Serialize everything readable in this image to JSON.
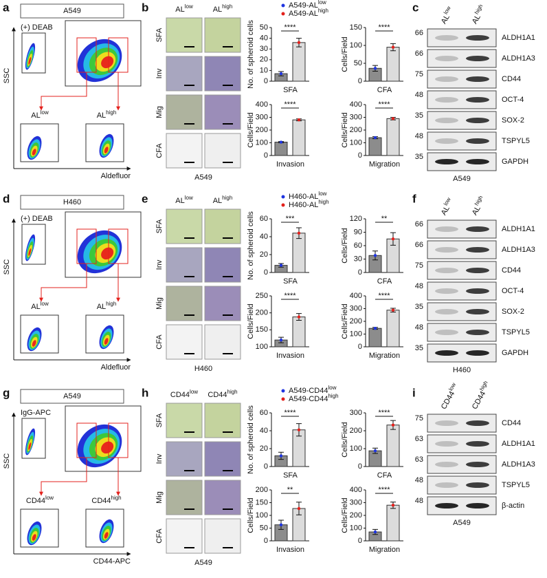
{
  "rows": [
    {
      "flow": {
        "letter": "a",
        "title": "A549",
        "control": "(+) DEAB",
        "low": {
          "base": "AL",
          "sup": "low"
        },
        "high": {
          "base": "AL",
          "sup": "high"
        },
        "y_label": "SSC",
        "x_label": "Aldefluor"
      },
      "images": {
        "letter": "b",
        "cols": [
          {
            "base": "AL",
            "sup": "low"
          },
          {
            "base": "AL",
            "sup": "high"
          }
        ],
        "rows": [
          "SFA",
          "Inv",
          "Mig",
          "CFA"
        ],
        "caption": "A549"
      },
      "legend": [
        {
          "base": "A549-AL",
          "sup": "low",
          "color": "#1f35e0"
        },
        {
          "base": "A549-AL",
          "sup": "high",
          "color": "#e3211c"
        }
      ],
      "blot": {
        "letter": "c",
        "lanes": [
          {
            "base": "AL",
            "sup": "low"
          },
          {
            "base": "AL",
            "sup": "high"
          }
        ],
        "rows": [
          {
            "mw": "66",
            "label": "ALDH1A1"
          },
          {
            "mw": "66",
            "label": "ALDH1A3"
          },
          {
            "mw": "75",
            "label": "CD44"
          },
          {
            "mw": "48",
            "label": "OCT-4"
          },
          {
            "mw": "35",
            "label": "SOX-2"
          },
          {
            "mw": "48",
            "label": "TSPYL5"
          },
          {
            "mw": "35",
            "label": "GAPDH"
          }
        ],
        "caption": "A549"
      }
    },
    {
      "flow": {
        "letter": "d",
        "title": "H460",
        "control": "(+) DEAB",
        "low": {
          "base": "AL",
          "sup": "low"
        },
        "high": {
          "base": "AL",
          "sup": "high"
        },
        "y_label": "SSC",
        "x_label": "Aldefluor"
      },
      "images": {
        "letter": "e",
        "cols": [
          {
            "base": "AL",
            "sup": "low"
          },
          {
            "base": "AL",
            "sup": "high"
          }
        ],
        "rows": [
          "SFA",
          "Inv",
          "Mig",
          "CFA"
        ],
        "caption": "H460"
      },
      "legend": [
        {
          "base": "H460-AL",
          "sup": "low",
          "color": "#1f35e0"
        },
        {
          "base": "H460-AL",
          "sup": "high",
          "color": "#e3211c"
        }
      ],
      "blot": {
        "letter": "f",
        "lanes": [
          {
            "base": "AL",
            "sup": "low"
          },
          {
            "base": "AL",
            "sup": "high"
          }
        ],
        "rows": [
          {
            "mw": "66",
            "label": "ALDH1A1"
          },
          {
            "mw": "66",
            "label": "ALDH1A3"
          },
          {
            "mw": "75",
            "label": "CD44"
          },
          {
            "mw": "48",
            "label": "OCT-4"
          },
          {
            "mw": "35",
            "label": "SOX-2"
          },
          {
            "mw": "48",
            "label": "TSPYL5"
          },
          {
            "mw": "35",
            "label": "GAPDH"
          }
        ],
        "caption": "H460"
      }
    },
    {
      "flow": {
        "letter": "g",
        "title": "A549",
        "control": "IgG-APC",
        "low": {
          "base": "CD44",
          "sup": "low"
        },
        "high": {
          "base": "CD44",
          "sup": "high"
        },
        "y_label": "SSC",
        "x_label": "CD44-APC"
      },
      "images": {
        "letter": "h",
        "cols": [
          {
            "base": "CD44",
            "sup": "low"
          },
          {
            "base": "CD44",
            "sup": "high"
          }
        ],
        "rows": [
          "SFA",
          "Inv",
          "Mig",
          "CFA"
        ],
        "caption": "A549"
      },
      "legend": [
        {
          "base": "A549-CD44",
          "sup": "low",
          "color": "#1f35e0"
        },
        {
          "base": "A549-CD44",
          "sup": "high",
          "color": "#e3211c"
        }
      ],
      "blot": {
        "letter": "i",
        "lanes": [
          {
            "base": "CD44",
            "sup": "low"
          },
          {
            "base": "CD44",
            "sup": "high"
          }
        ],
        "rows": [
          {
            "mw": "75",
            "label": "CD44"
          },
          {
            "mw": "63",
            "label": "ALDH1A1"
          },
          {
            "mw": "63",
            "label": "ALDH1A3"
          },
          {
            "mw": "48",
            "label": "TSPYL5"
          },
          {
            "mw": "48",
            "label": "β-actin"
          }
        ],
        "caption": "A549"
      }
    }
  ],
  "chart_data": [
    {
      "type": "bar",
      "x_label": "SFA",
      "y_label": "No. of spheroid cells",
      "values": [
        7,
        36
      ],
      "errors": [
        2,
        4
      ],
      "colors": [
        "#8c8c8c",
        "#dcdcdc"
      ],
      "ylim": [
        0,
        50
      ],
      "yticks": [
        0,
        10,
        20,
        30,
        40,
        50
      ],
      "significance": "****"
    },
    {
      "type": "bar",
      "x_label": "CFA",
      "y_label": "Cells/Field",
      "values": [
        36,
        95
      ],
      "errors": [
        8,
        10
      ],
      "colors": [
        "#8c8c8c",
        "#dcdcdc"
      ],
      "ylim": [
        0,
        150
      ],
      "yticks": [
        0,
        50,
        100,
        150
      ],
      "significance": "****"
    },
    {
      "type": "bar",
      "x_label": "Invasion",
      "y_label": "Cells/Field",
      "values": [
        105,
        280
      ],
      "errors": [
        5,
        8
      ],
      "colors": [
        "#8c8c8c",
        "#dcdcdc"
      ],
      "ylim": [
        0,
        400
      ],
      "yticks": [
        0,
        100,
        200,
        300,
        400
      ],
      "significance": "****"
    },
    {
      "type": "bar",
      "x_label": "Migration",
      "y_label": "Cells/Field",
      "values": [
        140,
        290
      ],
      "errors": [
        8,
        10
      ],
      "colors": [
        "#8c8c8c",
        "#dcdcdc"
      ],
      "ylim": [
        0,
        400
      ],
      "yticks": [
        0,
        100,
        200,
        300,
        400
      ],
      "significance": "****"
    },
    {
      "type": "bar",
      "x_label": "SFA",
      "y_label": "No. of spheroid cells",
      "values": [
        8,
        44
      ],
      "errors": [
        2,
        6
      ],
      "colors": [
        "#8c8c8c",
        "#dcdcdc"
      ],
      "ylim": [
        0,
        60
      ],
      "yticks": [
        0,
        20,
        40,
        60
      ],
      "significance": "***"
    },
    {
      "type": "bar",
      "x_label": "CFA",
      "y_label": "Cells/Field",
      "values": [
        38,
        75
      ],
      "errors": [
        10,
        14
      ],
      "colors": [
        "#8c8c8c",
        "#dcdcdc"
      ],
      "ylim": [
        0,
        120
      ],
      "yticks": [
        0,
        30,
        60,
        90,
        120
      ],
      "significance": "**"
    },
    {
      "type": "bar",
      "x_label": "Invasion",
      "y_label": "Cells/Field",
      "values": [
        120,
        188
      ],
      "errors": [
        8,
        10
      ],
      "colors": [
        "#8c8c8c",
        "#dcdcdc"
      ],
      "ylim": [
        100,
        250
      ],
      "yticks": [
        100,
        150,
        200,
        250
      ],
      "significance": "****"
    },
    {
      "type": "bar",
      "x_label": "Migration",
      "y_label": "Cells/Field",
      "values": [
        145,
        288
      ],
      "errors": [
        8,
        15
      ],
      "colors": [
        "#8c8c8c",
        "#dcdcdc"
      ],
      "ylim": [
        0,
        400
      ],
      "yticks": [
        0,
        100,
        200,
        300,
        400
      ],
      "significance": "****"
    },
    {
      "type": "bar",
      "x_label": "SFA",
      "y_label": "No. of spheroid cells",
      "values": [
        12,
        41
      ],
      "errors": [
        4,
        7
      ],
      "colors": [
        "#8c8c8c",
        "#dcdcdc"
      ],
      "ylim": [
        0,
        60
      ],
      "yticks": [
        0,
        20,
        40,
        60
      ],
      "significance": "****"
    },
    {
      "type": "bar",
      "x_label": "CFA",
      "y_label": "Cells/Field",
      "values": [
        88,
        232
      ],
      "errors": [
        15,
        25
      ],
      "colors": [
        "#8c8c8c",
        "#dcdcdc"
      ],
      "ylim": [
        0,
        300
      ],
      "yticks": [
        0,
        100,
        200,
        300
      ],
      "significance": "****"
    },
    {
      "type": "bar",
      "x_label": "Invasion",
      "y_label": "Cells/Field",
      "values": [
        63,
        127
      ],
      "errors": [
        18,
        25
      ],
      "colors": [
        "#8c8c8c",
        "#dcdcdc"
      ],
      "ylim": [
        0,
        200
      ],
      "yticks": [
        0,
        50,
        100,
        150,
        200
      ],
      "significance": "**"
    },
    {
      "type": "bar",
      "x_label": "Migration",
      "y_label": "Cells/Field",
      "values": [
        70,
        280
      ],
      "errors": [
        20,
        25
      ],
      "colors": [
        "#8c8c8c",
        "#dcdcdc"
      ],
      "ylim": [
        0,
        400
      ],
      "yticks": [
        0,
        100,
        200,
        300,
        400
      ],
      "significance": "****"
    }
  ]
}
